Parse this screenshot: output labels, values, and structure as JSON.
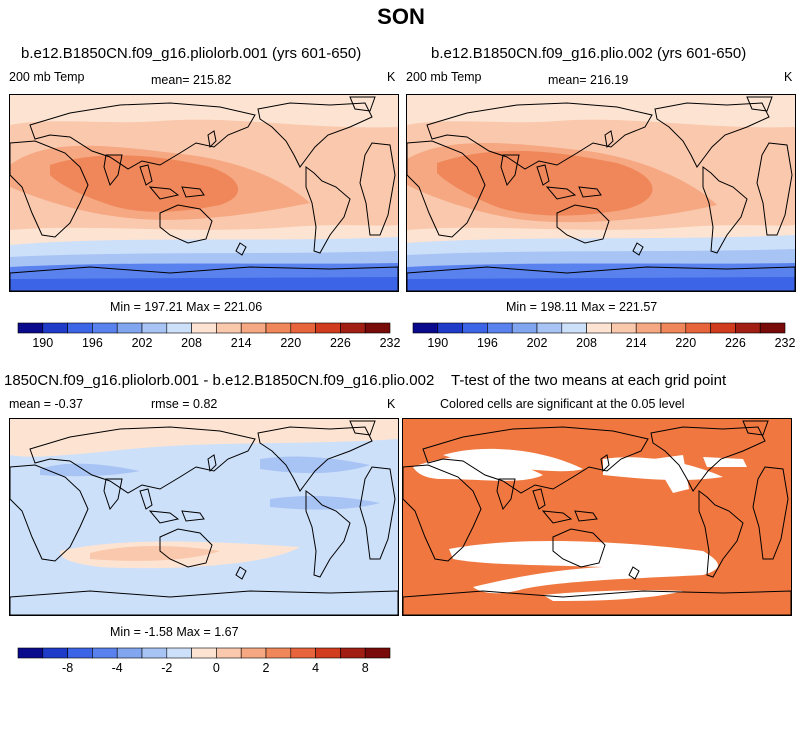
{
  "figure": {
    "title": "SON"
  },
  "panels": [
    {
      "title": "b.e12.B1850CN.f09_g16.pliolorb.001 (yrs 601-650)",
      "left_label": "200 mb Temp",
      "center_label": "mean= 215.82",
      "right_label": "K",
      "stats": "Min = 197.21 Max = 221.06"
    },
    {
      "title": "b.e12.B1850CN.f09_g16.plio.002 (yrs 601-650)",
      "left_label": "200 mb Temp",
      "center_label": "mean= 216.19",
      "right_label": "K",
      "stats": "Min = 198.11 Max = 221.57"
    },
    {
      "title": "1850CN.f09_g16.pliolorb.001 - b.e12.B1850CN.f09_g16.plio.002",
      "left_label": "mean =   -0.37",
      "center_label": "rmse =    0.82",
      "right_label": "K",
      "stats": "Min =  -1.58 Max =   1.67"
    },
    {
      "title": "T-test of the two means at each grid point",
      "subtitle": "Colored cells are significant at the 0.05 level"
    }
  ],
  "colorbars": {
    "temp": {
      "colors": [
        "#0a0a8c",
        "#1e3cc8",
        "#3c64e6",
        "#5a82ee",
        "#82a5f0",
        "#a8c4f5",
        "#cde0fa",
        "#fde4d2",
        "#fac8ad",
        "#f5a882",
        "#f0875a",
        "#e8643c",
        "#d23c1e",
        "#a01e12",
        "#780a0a"
      ],
      "labels": [
        "190",
        "196",
        "202",
        "208",
        "214",
        "220",
        "226",
        "232"
      ],
      "label_positions": [
        1,
        3,
        5,
        7,
        9,
        11,
        13,
        15
      ]
    },
    "diff": {
      "colors": [
        "#0a0a8c",
        "#1e3cc8",
        "#3c64e6",
        "#5a82ee",
        "#82a5f0",
        "#a8c4f5",
        "#cde0fa",
        "#fde4d2",
        "#fac8ad",
        "#f5a882",
        "#f0875a",
        "#e8643c",
        "#d23c1e",
        "#a01e12",
        "#780a0a"
      ],
      "labels": [
        "-8",
        "-4",
        "-2",
        "0",
        "2",
        "4",
        "8"
      ],
      "label_positions": [
        2,
        4,
        6,
        8,
        10,
        12,
        14
      ]
    }
  },
  "legend": {
    "ttest_significant_color": "#f07840"
  }
}
